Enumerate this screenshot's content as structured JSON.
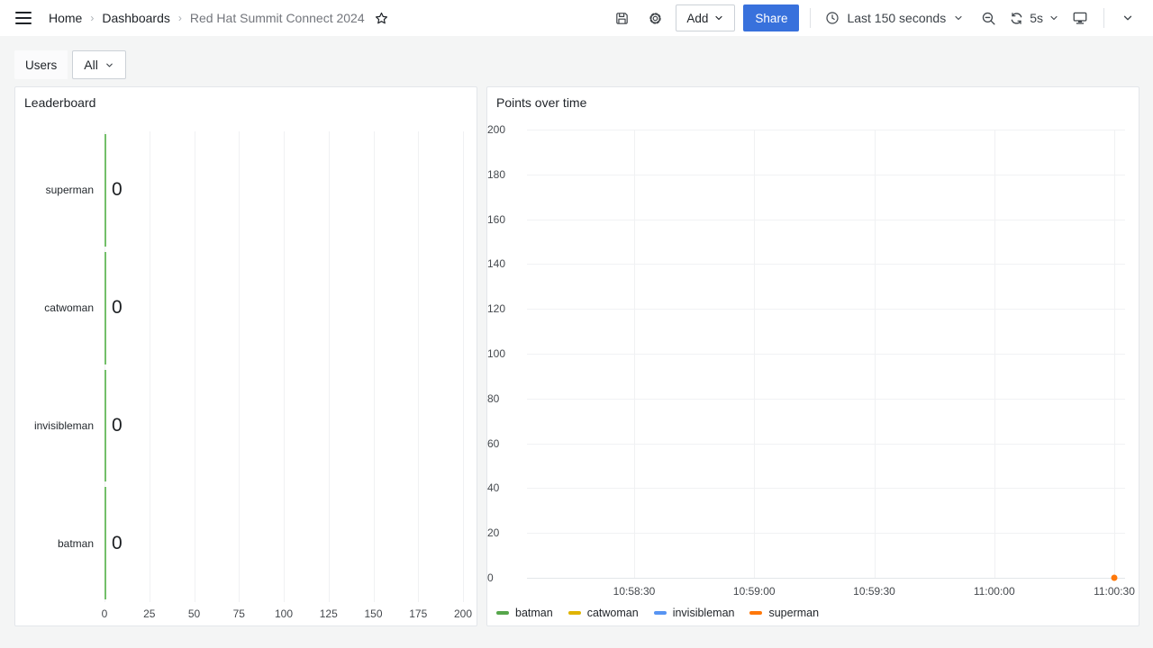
{
  "header": {
    "breadcrumb": [
      "Home",
      "Dashboards",
      "Red Hat Summit Connect 2024"
    ],
    "add_label": "Add",
    "share_label": "Share",
    "time_range": "Last 150 seconds",
    "refresh_interval": "5s"
  },
  "variables": {
    "label": "Users",
    "value": "All"
  },
  "colors": {
    "accent_blue": "#3871DC",
    "bar_green": "#73BF69",
    "icon_gray": "#3f4449"
  },
  "chart_data": [
    {
      "type": "bar",
      "orientation": "horizontal",
      "title": "Leaderboard",
      "categories": [
        "superman",
        "catwoman",
        "invisibleman",
        "batman"
      ],
      "values": [
        0,
        0,
        0,
        0
      ],
      "value_labels": [
        "0",
        "0",
        "0",
        "0"
      ],
      "xlabel": "",
      "ylabel": "",
      "xlim": [
        0,
        200
      ],
      "x_ticks": [
        0,
        25,
        50,
        75,
        100,
        125,
        150,
        175,
        200
      ],
      "bar_color": "#73BF69",
      "grid": true
    },
    {
      "type": "line",
      "title": "Points over time",
      "xlabel": "",
      "ylabel": "",
      "ylim": [
        0,
        200
      ],
      "y_ticks": [
        0,
        20,
        40,
        60,
        80,
        100,
        120,
        140,
        160,
        180,
        200
      ],
      "x_ticks": [
        "10:58:30",
        "10:59:00",
        "10:59:30",
        "11:00:00",
        "11:00:30"
      ],
      "grid": true,
      "legend_position": "bottom",
      "series": [
        {
          "name": "batman",
          "color": "#56A64B",
          "points": []
        },
        {
          "name": "catwoman",
          "color": "#E0B400",
          "points": []
        },
        {
          "name": "invisibleman",
          "color": "#5794F2",
          "points": []
        },
        {
          "name": "superman",
          "color": "#FF780A",
          "points": [
            {
              "x": "11:00:30",
              "y": 0
            }
          ]
        }
      ]
    }
  ]
}
